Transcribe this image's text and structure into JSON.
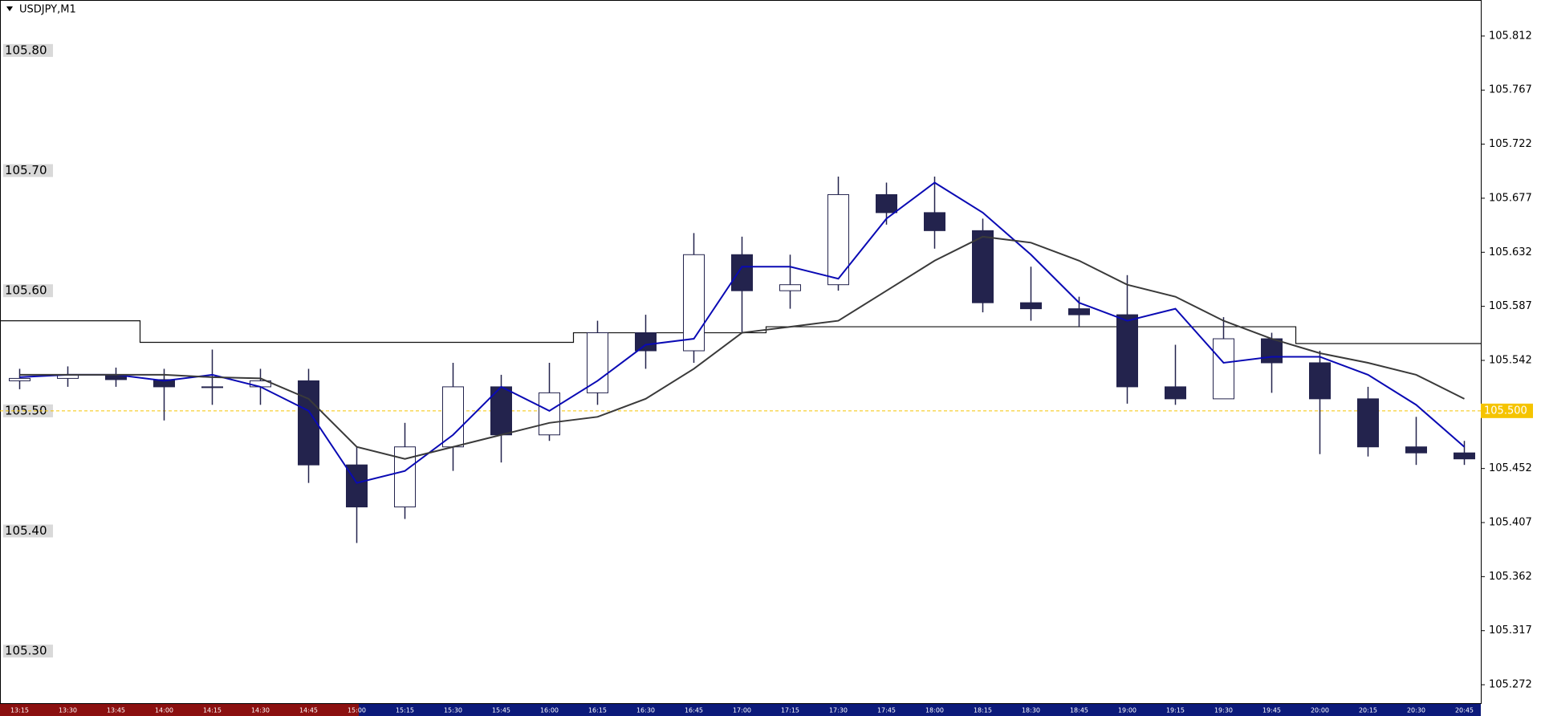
{
  "chart_data": {
    "type": "candlestick",
    "title": "USDJPY,M1",
    "categories": [
      "13:15",
      "13:30",
      "13:45",
      "14:00",
      "14:15",
      "14:30",
      "14:45",
      "15:00",
      "15:15",
      "15:30",
      "15:45",
      "16:00",
      "16:15",
      "16:30",
      "16:45",
      "17:00",
      "17:15",
      "17:30",
      "17:45",
      "18:00",
      "18:15",
      "18:30",
      "18:45",
      "19:00",
      "19:15",
      "19:30",
      "19:45",
      "20:00",
      "20:15",
      "20:30",
      "20:45"
    ],
    "open": [
      105.525,
      105.527,
      105.53,
      105.526,
      105.52,
      105.52,
      105.525,
      105.455,
      105.42,
      105.47,
      105.52,
      105.48,
      105.515,
      105.565,
      105.55,
      105.63,
      105.6,
      105.605,
      105.68,
      105.665,
      105.65,
      105.59,
      105.585,
      105.58,
      105.52,
      105.51,
      105.56,
      105.54,
      105.51,
      105.47,
      105.465
    ],
    "high": [
      105.535,
      105.537,
      105.536,
      105.535,
      105.551,
      105.535,
      105.535,
      105.47,
      105.49,
      105.54,
      105.53,
      105.54,
      105.575,
      105.58,
      105.648,
      105.645,
      105.63,
      105.695,
      105.69,
      105.695,
      105.66,
      105.62,
      105.595,
      105.613,
      105.555,
      105.578,
      105.565,
      105.55,
      105.52,
      105.495,
      105.475
    ],
    "low": [
      105.518,
      105.52,
      105.52,
      105.492,
      105.505,
      105.505,
      105.44,
      105.39,
      105.41,
      105.45,
      105.457,
      105.475,
      105.505,
      105.535,
      105.54,
      105.565,
      105.585,
      105.6,
      105.655,
      105.635,
      105.582,
      105.575,
      105.57,
      105.506,
      105.505,
      105.51,
      105.515,
      105.464,
      105.462,
      105.455,
      105.455
    ],
    "close": [
      105.527,
      105.53,
      105.526,
      105.52,
      105.52,
      105.525,
      105.455,
      105.42,
      105.47,
      105.52,
      105.48,
      105.515,
      105.565,
      105.55,
      105.63,
      105.6,
      105.605,
      105.68,
      105.665,
      105.65,
      105.59,
      105.585,
      105.58,
      105.52,
      105.51,
      105.56,
      105.54,
      105.51,
      105.47,
      105.465,
      105.46
    ],
    "body_color": "#23234d",
    "lines": [
      {
        "color": "#0a0ab4",
        "values": [
          105.528,
          105.53,
          105.53,
          105.525,
          105.53,
          105.52,
          105.5,
          105.44,
          105.45,
          105.48,
          105.52,
          105.5,
          105.525,
          105.555,
          105.56,
          105.62,
          105.62,
          105.61,
          105.66,
          105.69,
          105.665,
          105.63,
          105.59,
          105.575,
          105.585,
          105.54,
          105.545,
          105.545,
          105.53,
          105.505,
          105.47
        ]
      },
      {
        "color": "#3a3a3a",
        "values": [
          105.53,
          105.53,
          105.53,
          105.53,
          105.528,
          105.527,
          105.51,
          105.47,
          105.46,
          105.47,
          105.48,
          105.49,
          105.495,
          105.51,
          105.535,
          105.565,
          105.57,
          105.575,
          105.6,
          105.625,
          105.645,
          105.64,
          105.625,
          105.605,
          105.595,
          105.575,
          105.56,
          105.548,
          105.54,
          105.53,
          105.51
        ]
      }
    ],
    "step_line": {
      "color": "#111111",
      "values": [
        105.575,
        105.575,
        105.575,
        105.557,
        105.557,
        105.557,
        105.557,
        105.557,
        105.557,
        105.557,
        105.557,
        105.557,
        105.565,
        105.565,
        105.565,
        105.565,
        105.57,
        105.57,
        105.57,
        105.57,
        105.57,
        105.57,
        105.57,
        105.57,
        105.57,
        105.57,
        105.57,
        105.556,
        105.556,
        105.556,
        105.556
      ]
    },
    "current_price": {
      "value": 105.5,
      "label": "105.500"
    },
    "ylim": [
      105.256,
      105.842
    ],
    "yticks": [
      105.812,
      105.767,
      105.722,
      105.677,
      105.632,
      105.587,
      105.542,
      105.452,
      105.407,
      105.362,
      105.317,
      105.272
    ],
    "yticks_left": [
      {
        "value": 105.8,
        "label": "105.80"
      },
      {
        "value": 105.7,
        "label": "105.70"
      },
      {
        "value": 105.6,
        "label": "105.60"
      },
      {
        "value": 105.5,
        "label": "105.50"
      },
      {
        "value": 105.4,
        "label": "105.40"
      },
      {
        "value": 105.3,
        "label": "105.30"
      }
    ]
  }
}
